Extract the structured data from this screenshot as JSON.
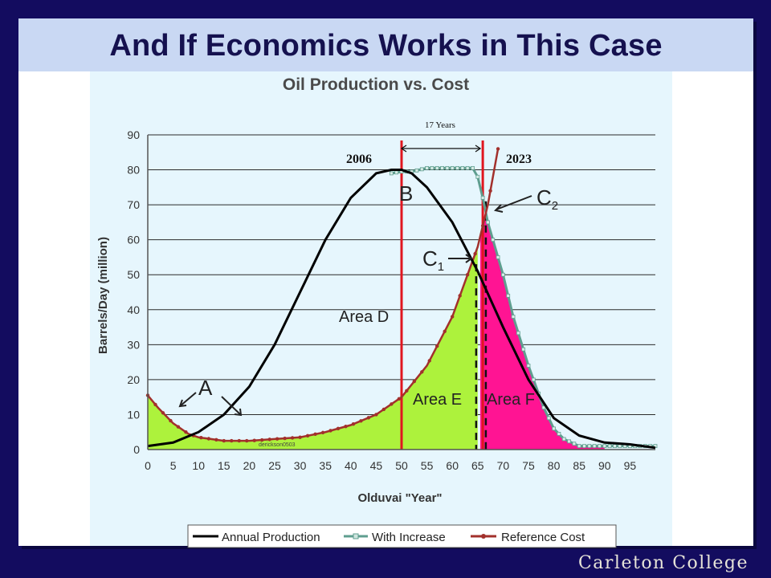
{
  "slide": {
    "title": "And If Economics Works in This Case",
    "footer": "Carleton College"
  },
  "colors": {
    "background": "#130c5f",
    "title_bar": "#c9d8f3",
    "chart_panel": "#e6f6fd",
    "annual_production": "#000000",
    "with_increase": "#5f9e8f",
    "reference_cost": "#a2302c",
    "area_e": "#adf23c",
    "area_f": "#ff1493",
    "marker_lines": "#e0161f"
  },
  "chart_data": {
    "type": "line",
    "title": "Oil Production vs. Cost",
    "xlabel": "Olduvai \"Year\"",
    "ylabel": "Barrels/Day (million)",
    "xlim": [
      0,
      100
    ],
    "ylim": [
      0,
      90
    ],
    "xticks": [
      0,
      5,
      10,
      15,
      20,
      25,
      30,
      35,
      40,
      45,
      50,
      55,
      60,
      65,
      70,
      75,
      80,
      85,
      90,
      95
    ],
    "yticks": [
      0,
      10,
      20,
      30,
      40,
      50,
      60,
      70,
      80,
      90
    ],
    "grid": "horizontal",
    "legend_position": "bottom",
    "series": [
      {
        "name": "Annual Production",
        "x": [
          0,
          5,
          10,
          15,
          20,
          25,
          30,
          35,
          40,
          45,
          48,
          50,
          52,
          55,
          60,
          65,
          70,
          75,
          80,
          85,
          90,
          95,
          100
        ],
        "y": [
          1,
          2,
          5,
          10,
          18,
          30,
          45,
          60,
          72,
          79,
          80,
          80,
          79,
          75,
          65,
          51,
          35,
          20,
          9,
          4,
          2,
          1.5,
          0.5
        ]
      },
      {
        "name": "With Increase",
        "x": [
          48,
          50,
          52,
          55,
          60,
          64,
          65,
          66,
          67,
          68,
          70,
          72,
          75,
          78,
          80,
          82,
          85,
          90,
          95,
          100
        ],
        "y": [
          79,
          79.5,
          79.5,
          80.5,
          80.5,
          80.5,
          78,
          72,
          65,
          60,
          50,
          38,
          24,
          12,
          6,
          3,
          1,
          1,
          1,
          1
        ]
      },
      {
        "name": "Reference Cost",
        "x": [
          0,
          2,
          5,
          8,
          10,
          15,
          20,
          25,
          30,
          35,
          40,
          45,
          50,
          55,
          60,
          62,
          64,
          65,
          66,
          67,
          68,
          69
        ],
        "y": [
          15.5,
          12,
          7.5,
          4.5,
          3.5,
          2.5,
          2.5,
          3,
          3.5,
          5,
          7,
          10,
          15,
          24,
          38,
          46,
          54,
          58,
          64,
          70,
          78,
          86
        ]
      }
    ],
    "areas": [
      {
        "label": "Area D"
      },
      {
        "label": "Area E"
      },
      {
        "label": "Area F"
      }
    ],
    "annotations": {
      "a": "A",
      "b": "B",
      "c1": "C",
      "c1_sub": "1",
      "c2": "C",
      "c2_sub": "2",
      "credit": "derickson0503",
      "span": "17 Years",
      "year_left": "2006",
      "year_right": "2023"
    },
    "vertical_markers": [
      50,
      66
    ]
  }
}
